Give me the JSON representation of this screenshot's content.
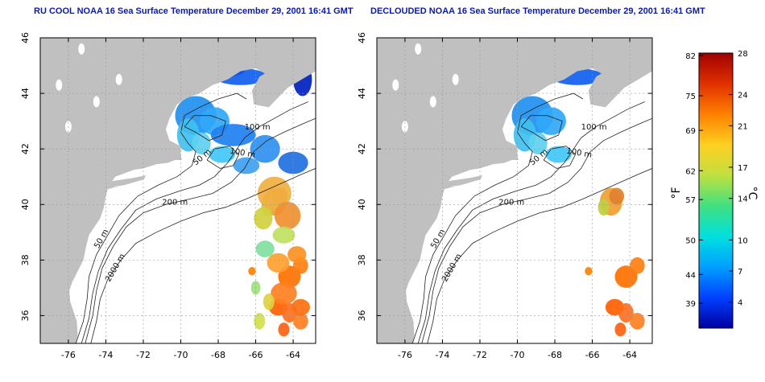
{
  "panels": [
    {
      "title": "RU COOL NOAA 16 Sea Surface Temperature December 29, 2001 16:41 GMT",
      "cloud_masked": false
    },
    {
      "title": "DECLOUDED NOAA 16 Sea Surface Temperature December 29, 2001 16:41 GMT",
      "cloud_masked": true
    }
  ],
  "map": {
    "lon_ticks": [
      "-76",
      "-74",
      "-72",
      "-70",
      "-68",
      "-66",
      "-64"
    ],
    "lat_ticks": [
      "46",
      "44",
      "42",
      "40",
      "38",
      "36"
    ],
    "lon_range": [
      -77.5,
      -62.8
    ],
    "lat_range": [
      35,
      46
    ],
    "contour_labels": [
      "100 m",
      "100 m",
      "50 m",
      "200 m",
      "50 m",
      "2000 m"
    ],
    "land_color": "#c0c0c0",
    "ocean_color": "#ffffff"
  },
  "colorbar": {
    "f_label": "°F",
    "c_label": "°C",
    "f_ticks": [
      "82",
      "75",
      "69",
      "62",
      "57",
      "50",
      "44",
      "39"
    ],
    "c_ticks": [
      "28",
      "24",
      "21",
      "17",
      "14",
      "10",
      "7",
      "4"
    ],
    "colors": [
      "#0000a0",
      "#0040ff",
      "#00a0ff",
      "#00e0e0",
      "#40e080",
      "#c0e040",
      "#ffd020",
      "#ff8000",
      "#e03000",
      "#a00000"
    ]
  }
}
